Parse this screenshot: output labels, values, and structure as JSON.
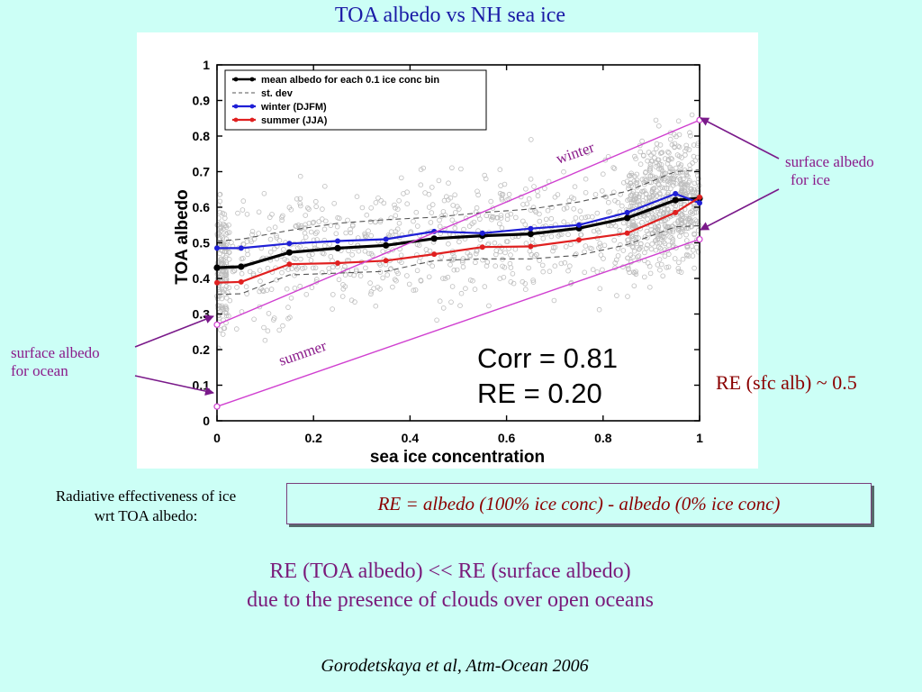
{
  "slide": {
    "title": "TOA albedo vs NH sea ice",
    "annotations": {
      "winter": "winter",
      "summer": "summer",
      "surface_albedo_ice_line1": "surface albedo",
      "surface_albedo_ice_line2": "for ice",
      "surface_albedo_ocean_line1": "surface albedo",
      "surface_albedo_ocean_line2": "for ocean",
      "re_sfc": "RE (sfc alb) ~ 0.5"
    },
    "left_note_line1": "Radiative effectiveness of ice",
    "left_note_line2": "wrt TOA albedo:",
    "formula": "RE = albedo (100% ice conc) - albedo (0% ice conc)",
    "conclusion_line1": "RE (TOA albedo) << RE (surface albedo)",
    "conclusion_line2": "due to the presence of clouds over open oceans",
    "citation": "Gorodetskaya et al, Atm-Ocean 2006",
    "colors": {
      "mean": "#000000",
      "stdev": "#555555",
      "winter": "#1f1fd6",
      "summer": "#e02020",
      "annotation": "#8a1a8a",
      "guide": "#d040d0",
      "scatter": "#bdbdbd"
    }
  },
  "chart_data": {
    "type": "line",
    "title": "",
    "xlabel": "sea ice concentration",
    "ylabel": "TOA albedo",
    "xlim": [
      0,
      1
    ],
    "ylim": [
      0,
      1
    ],
    "xticks": [
      0,
      0.2,
      0.4,
      0.6,
      0.8,
      1
    ],
    "xtick_labels": [
      "0",
      "0.2",
      "0.4",
      "0.6",
      "0.8",
      "1"
    ],
    "yticks": [
      0,
      0.1,
      0.2,
      0.3,
      0.4,
      0.5,
      0.6,
      0.7,
      0.8,
      0.9,
      1
    ],
    "ytick_labels": [
      "0",
      "0.1",
      "0.2",
      "0.3",
      "0.4",
      "0.5",
      "0.6",
      "0.7",
      "0.8",
      "0.9",
      "1"
    ],
    "legend_position": "top-left",
    "x": [
      0,
      0.05,
      0.15,
      0.25,
      0.35,
      0.45,
      0.55,
      0.65,
      0.75,
      0.85,
      0.95,
      1.0
    ],
    "series": [
      {
        "name": "mean albedo for each 0.1 ice conc bin",
        "style": "solid-black-markers",
        "values": [
          0.43,
          0.433,
          0.473,
          0.485,
          0.493,
          0.512,
          0.52,
          0.525,
          0.541,
          0.57,
          0.62,
          0.625
        ]
      },
      {
        "name": "st. dev",
        "style": "dashed-gray",
        "part": "upper",
        "values": [
          0.505,
          0.51,
          0.535,
          0.555,
          0.565,
          0.572,
          0.585,
          0.595,
          0.615,
          0.645,
          0.7,
          0.705
        ]
      },
      {
        "name": "st. dev",
        "style": "dashed-gray",
        "part": "lower",
        "legend": false,
        "values": [
          0.355,
          0.357,
          0.41,
          0.415,
          0.42,
          0.45,
          0.455,
          0.455,
          0.465,
          0.495,
          0.545,
          0.548
        ]
      },
      {
        "name": "winter (DJFM)",
        "style": "solid-blue-markers",
        "values": [
          0.485,
          0.485,
          0.498,
          0.505,
          0.51,
          0.532,
          0.527,
          0.54,
          0.55,
          0.585,
          0.638,
          0.612
        ]
      },
      {
        "name": "summer (JJA)",
        "style": "solid-red-markers",
        "values": [
          0.388,
          0.39,
          0.44,
          0.443,
          0.45,
          0.468,
          0.488,
          0.49,
          0.508,
          0.527,
          0.585,
          0.628
        ]
      }
    ],
    "guide_lines": [
      {
        "name": "winter",
        "x": [
          0,
          1
        ],
        "y": [
          0.27,
          0.845
        ]
      },
      {
        "name": "summer",
        "x": [
          0,
          1
        ],
        "y": [
          0.04,
          0.51
        ]
      }
    ],
    "annotation_text": [
      "Corr = 0.81",
      "RE = 0.20"
    ]
  }
}
